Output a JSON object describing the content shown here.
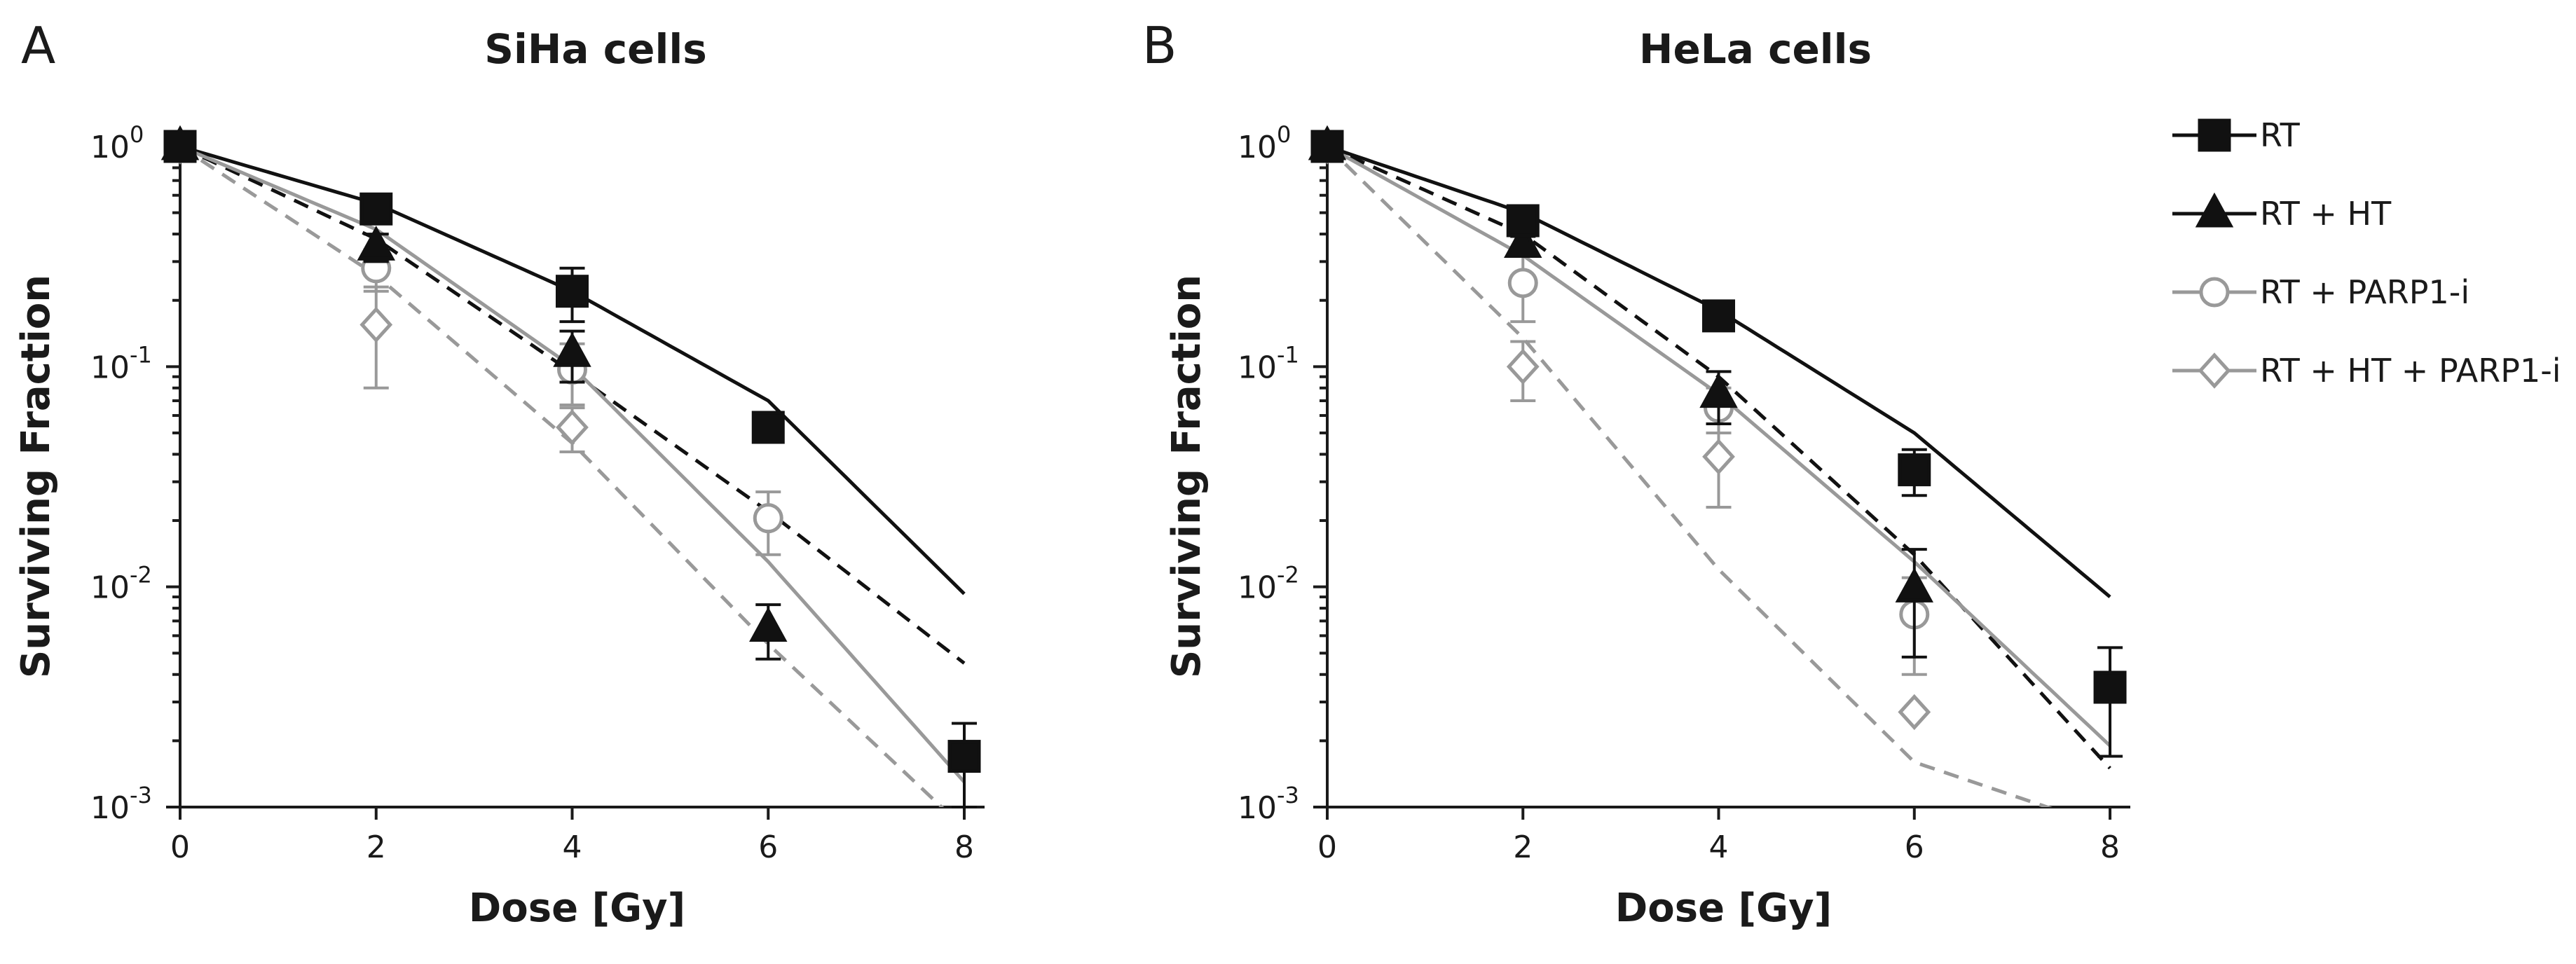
{
  "legend": {
    "placement": "top-right",
    "entries": [
      {
        "label": "RT",
        "color": "#111111",
        "marker": "square",
        "line": "solid"
      },
      {
        "label": "RT + HT",
        "color": "#111111",
        "marker": "triangle",
        "line": "dashed"
      },
      {
        "label": "RT + PARP1-i",
        "color": "#999999",
        "marker": "circle",
        "line": "solid"
      },
      {
        "label": "RT + HT + PARP1-i",
        "color": "#999999",
        "marker": "diamond",
        "line": "dashed"
      }
    ]
  },
  "chart_data": [
    {
      "type": "scatter",
      "panel": "A",
      "title": "SiHa cells",
      "xlabel": "Dose [Gy]",
      "ylabel": "Surviving Fraction",
      "xlim": [
        0,
        8
      ],
      "ylim": [
        0.001,
        1
      ],
      "yscale": "log",
      "xticks": [
        0,
        2,
        4,
        6,
        8
      ],
      "yticks": [
        1,
        0.1,
        0.01,
        0.001
      ],
      "ytick_labels": [
        {
          "base": "10",
          "exp": "0"
        },
        {
          "base": "10",
          "exp": "-1"
        },
        {
          "base": "10",
          "exp": "-2"
        },
        {
          "base": "10",
          "exp": "-3"
        }
      ],
      "series": [
        {
          "name": "RT",
          "x": [
            0,
            2,
            4,
            6,
            8
          ],
          "y": [
            1,
            0.52,
            0.22,
            0.053,
            0.0017
          ],
          "err": [
            0,
            0.04,
            0.06,
            0.005,
            0.0007
          ],
          "fit": [
            1,
            0.55,
            0.22,
            0.07,
            0.0093
          ]
        },
        {
          "name": "RT + HT",
          "x": [
            0,
            2,
            4,
            6
          ],
          "y": [
            1,
            0.35,
            0.115,
            0.0065
          ],
          "err": [
            0,
            0.05,
            0.03,
            0.0018
          ],
          "fit": [
            1,
            0.38,
            0.094,
            0.022,
            0.0045
          ]
        },
        {
          "name": "RT + PARP1-i",
          "x": [
            0,
            2,
            4,
            6
          ],
          "y": [
            1,
            0.28,
            0.097,
            0.0205
          ],
          "err": [
            0,
            0.06,
            0.03,
            0.0065
          ],
          "fit": [
            1,
            0.42,
            0.1,
            0.013,
            0.0013
          ]
        },
        {
          "name": "RT + HT + PARP1-i",
          "x": [
            0,
            2,
            4
          ],
          "y": [
            1,
            0.155,
            0.053
          ],
          "err": [
            0,
            0.075,
            0.012
          ],
          "fit": [
            1,
            0.26,
            0.045,
            0.0055,
            0.0008
          ]
        }
      ]
    },
    {
      "type": "scatter",
      "panel": "B",
      "title": "HeLa cells",
      "xlabel": "Dose [Gy]",
      "ylabel": "Surviving Fraction",
      "xlim": [
        0,
        8
      ],
      "ylim": [
        0.001,
        1
      ],
      "yscale": "log",
      "xticks": [
        0,
        2,
        4,
        6,
        8
      ],
      "yticks": [
        1,
        0.1,
        0.01,
        0.001
      ],
      "ytick_labels": [
        {
          "base": "10",
          "exp": "0"
        },
        {
          "base": "10",
          "exp": "-1"
        },
        {
          "base": "10",
          "exp": "-2"
        },
        {
          "base": "10",
          "exp": "-3"
        }
      ],
      "series": [
        {
          "name": "RT",
          "x": [
            0,
            2,
            4,
            6,
            8
          ],
          "y": [
            1,
            0.46,
            0.17,
            0.034,
            0.0035
          ],
          "err": [
            0,
            0.03,
            0.02,
            0.008,
            0.0018
          ],
          "fit": [
            1,
            0.5,
            0.18,
            0.05,
            0.009
          ]
        },
        {
          "name": "RT + HT",
          "x": [
            0,
            2,
            4,
            6
          ],
          "y": [
            1,
            0.36,
            0.075,
            0.0098
          ],
          "err": [
            0,
            0.03,
            0.02,
            0.005
          ],
          "fit": [
            1,
            0.4,
            0.09,
            0.014,
            0.0015
          ]
        },
        {
          "name": "RT + PARP1-i",
          "x": [
            0,
            2,
            4,
            6
          ],
          "y": [
            1,
            0.24,
            0.065,
            0.0075
          ],
          "err": [
            0,
            0.08,
            0.015,
            0.0035
          ],
          "fit": [
            1,
            0.32,
            0.075,
            0.013,
            0.0019
          ]
        },
        {
          "name": "RT + HT + PARP1-i",
          "x": [
            0,
            2,
            4,
            6
          ],
          "y": [
            1,
            0.1,
            0.039,
            0.0027
          ],
          "err": [
            0,
            0.03,
            0.016,
            0
          ],
          "fit": [
            1,
            0.135,
            0.012,
            0.0016,
            0.0008
          ]
        }
      ]
    }
  ]
}
